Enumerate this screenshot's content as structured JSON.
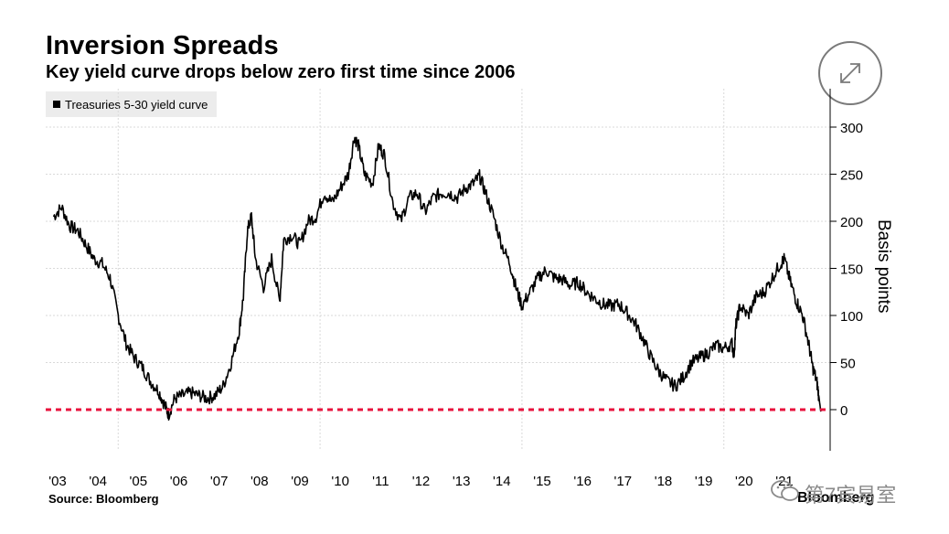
{
  "header": {
    "title": "Inversion Spreads",
    "subtitle": "Key yield curve drops below zero first time since 2006"
  },
  "legend": {
    "label": "Treasuries 5-30 yield curve"
  },
  "footer": {
    "source": "Source: Bloomberg",
    "brand": "Bloomberg",
    "watermark": "第7宾易室"
  },
  "icons": {
    "expand": "expand-arrows-icon",
    "watermark": "wechat-icon"
  },
  "colors": {
    "series": "#000000",
    "zero_line": "#e8123c",
    "grid": "#d9d9d9",
    "legend_bg": "#ececec"
  },
  "chart_data": {
    "type": "line",
    "ylabel": "Basis points",
    "ylim": [
      -45,
      320
    ],
    "yticks": [
      0,
      50,
      100,
      150,
      200,
      250,
      300
    ],
    "xlim": [
      2002.9,
      2021.9
    ],
    "xticks": [
      {
        "label": "'03",
        "year": 2003
      },
      {
        "label": "'04",
        "year": 2004
      },
      {
        "label": "'05",
        "year": 2005
      },
      {
        "label": "'06",
        "year": 2006
      },
      {
        "label": "'07",
        "year": 2007
      },
      {
        "label": "'08",
        "year": 2008
      },
      {
        "label": "'09",
        "year": 2009
      },
      {
        "label": "'10",
        "year": 2010
      },
      {
        "label": "'11",
        "year": 2011
      },
      {
        "label": "'12",
        "year": 2012
      },
      {
        "label": "'13",
        "year": 2013
      },
      {
        "label": "'14",
        "year": 2014
      },
      {
        "label": "'15",
        "year": 2015
      },
      {
        "label": "'16",
        "year": 2016
      },
      {
        "label": "'17",
        "year": 2017
      },
      {
        "label": "'18",
        "year": 2018
      },
      {
        "label": "'19",
        "year": 2019
      },
      {
        "label": "'20",
        "year": 2020
      },
      {
        "label": "'21",
        "year": 2021
      }
    ],
    "grid": true,
    "reference_line": {
      "y": 0,
      "style": "dashed"
    },
    "series": [
      {
        "name": "Treasuries 5-30 yield curve",
        "points": [
          [
            2002.9,
            205
          ],
          [
            2003.1,
            215
          ],
          [
            2003.3,
            195
          ],
          [
            2003.5,
            190
          ],
          [
            2003.7,
            175
          ],
          [
            2003.9,
            160
          ],
          [
            2004.1,
            155
          ],
          [
            2004.3,
            140
          ],
          [
            2004.5,
            100
          ],
          [
            2004.7,
            70
          ],
          [
            2004.9,
            55
          ],
          [
            2005.1,
            45
          ],
          [
            2005.3,
            30
          ],
          [
            2005.5,
            20
          ],
          [
            2005.65,
            5
          ],
          [
            2005.75,
            -5
          ],
          [
            2005.9,
            12
          ],
          [
            2006.1,
            15
          ],
          [
            2006.3,
            18
          ],
          [
            2006.5,
            15
          ],
          [
            2006.7,
            12
          ],
          [
            2006.9,
            15
          ],
          [
            2007.1,
            25
          ],
          [
            2007.3,
            50
          ],
          [
            2007.5,
            85
          ],
          [
            2007.6,
            120
          ],
          [
            2007.7,
            190
          ],
          [
            2007.8,
            205
          ],
          [
            2007.9,
            160
          ],
          [
            2008.1,
            130
          ],
          [
            2008.3,
            160
          ],
          [
            2008.5,
            115
          ],
          [
            2008.6,
            180
          ],
          [
            2008.8,
            185
          ],
          [
            2009.0,
            175
          ],
          [
            2009.2,
            200
          ],
          [
            2009.4,
            205
          ],
          [
            2009.6,
            230
          ],
          [
            2009.8,
            220
          ],
          [
            2010.0,
            235
          ],
          [
            2010.2,
            250
          ],
          [
            2010.35,
            290
          ],
          [
            2010.45,
            280
          ],
          [
            2010.6,
            250
          ],
          [
            2010.8,
            240
          ],
          [
            2010.95,
            280
          ],
          [
            2011.1,
            270
          ],
          [
            2011.3,
            220
          ],
          [
            2011.5,
            200
          ],
          [
            2011.7,
            225
          ],
          [
            2011.9,
            230
          ],
          [
            2012.1,
            210
          ],
          [
            2012.3,
            225
          ],
          [
            2012.5,
            230
          ],
          [
            2012.7,
            230
          ],
          [
            2012.9,
            225
          ],
          [
            2013.1,
            235
          ],
          [
            2013.3,
            240
          ],
          [
            2013.45,
            248
          ],
          [
            2013.6,
            230
          ],
          [
            2013.8,
            205
          ],
          [
            2014.0,
            175
          ],
          [
            2014.2,
            155
          ],
          [
            2014.35,
            130
          ],
          [
            2014.5,
            110
          ],
          [
            2014.7,
            125
          ],
          [
            2014.9,
            140
          ],
          [
            2015.1,
            148
          ],
          [
            2015.3,
            140
          ],
          [
            2015.5,
            138
          ],
          [
            2015.7,
            132
          ],
          [
            2015.9,
            135
          ],
          [
            2016.1,
            125
          ],
          [
            2016.3,
            118
          ],
          [
            2016.5,
            112
          ],
          [
            2016.7,
            110
          ],
          [
            2016.9,
            112
          ],
          [
            2017.1,
            103
          ],
          [
            2017.3,
            92
          ],
          [
            2017.5,
            75
          ],
          [
            2017.7,
            55
          ],
          [
            2017.9,
            40
          ],
          [
            2018.1,
            30
          ],
          [
            2018.3,
            25
          ],
          [
            2018.5,
            35
          ],
          [
            2018.7,
            50
          ],
          [
            2018.9,
            55
          ],
          [
            2019.1,
            60
          ],
          [
            2019.3,
            68
          ],
          [
            2019.5,
            65
          ],
          [
            2019.7,
            70
          ],
          [
            2019.75,
            58
          ],
          [
            2019.8,
            90
          ],
          [
            2019.9,
            110
          ],
          [
            2020.1,
            100
          ],
          [
            2020.3,
            120
          ],
          [
            2020.5,
            125
          ],
          [
            2020.7,
            140
          ],
          [
            2020.9,
            155
          ],
          [
            2021.0,
            160
          ],
          [
            2021.15,
            135
          ],
          [
            2021.3,
            115
          ],
          [
            2021.45,
            100
          ],
          [
            2021.6,
            70
          ],
          [
            2021.7,
            45
          ],
          [
            2021.8,
            30
          ],
          [
            2021.85,
            15
          ],
          [
            2021.9,
            -2
          ]
        ]
      }
    ]
  }
}
